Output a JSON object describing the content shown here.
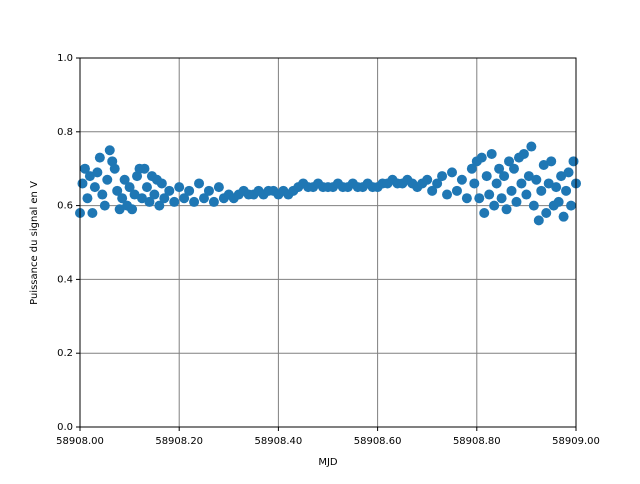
{
  "chart_data": {
    "type": "scatter",
    "x_label": "MJD",
    "y_label": "Puissance du signal en V",
    "x": [
      58908.0,
      58908.005,
      58908.01,
      58908.015,
      58908.02,
      58908.025,
      58908.03,
      58908.035,
      58908.04,
      58908.045,
      58908.05,
      58908.055,
      58908.06,
      58908.065,
      58908.07,
      58908.075,
      58908.08,
      58908.085,
      58908.09,
      58908.095,
      58908.1,
      58908.105,
      58908.11,
      58908.115,
      58908.12,
      58908.125,
      58908.13,
      58908.135,
      58908.14,
      58908.145,
      58908.15,
      58908.155,
      58908.16,
      58908.165,
      58908.17,
      58908.18,
      58908.19,
      58908.2,
      58908.21,
      58908.22,
      58908.23,
      58908.24,
      58908.25,
      58908.26,
      58908.27,
      58908.28,
      58908.29,
      58908.3,
      58908.31,
      58908.32,
      58908.33,
      58908.34,
      58908.35,
      58908.36,
      58908.37,
      58908.38,
      58908.39,
      58908.4,
      58908.41,
      58908.42,
      58908.43,
      58908.44,
      58908.45,
      58908.46,
      58908.47,
      58908.48,
      58908.49,
      58908.5,
      58908.51,
      58908.52,
      58908.53,
      58908.54,
      58908.55,
      58908.56,
      58908.57,
      58908.58,
      58908.59,
      58908.6,
      58908.61,
      58908.62,
      58908.63,
      58908.64,
      58908.65,
      58908.66,
      58908.67,
      58908.68,
      58908.69,
      58908.7,
      58908.71,
      58908.72,
      58908.73,
      58908.74,
      58908.75,
      58908.76,
      58908.77,
      58908.78,
      58908.79,
      58908.795,
      58908.8,
      58908.805,
      58908.81,
      58908.815,
      58908.82,
      58908.825,
      58908.83,
      58908.835,
      58908.84,
      58908.845,
      58908.85,
      58908.855,
      58908.86,
      58908.865,
      58908.87,
      58908.875,
      58908.88,
      58908.885,
      58908.89,
      58908.895,
      58908.9,
      58908.905,
      58908.91,
      58908.915,
      58908.92,
      58908.925,
      58908.93,
      58908.935,
      58908.94,
      58908.945,
      58908.95,
      58908.955,
      58908.96,
      58908.965,
      58908.97,
      58908.975,
      58908.98,
      58908.985,
      58908.99,
      58908.995,
      58909.0
    ],
    "series": [
      {
        "color": "#1f77b4",
        "values": [
          0.58,
          0.66,
          0.7,
          0.62,
          0.68,
          0.58,
          0.65,
          0.69,
          0.73,
          0.63,
          0.6,
          0.67,
          0.75,
          0.72,
          0.7,
          0.64,
          0.59,
          0.62,
          0.67,
          0.6,
          0.65,
          0.59,
          0.63,
          0.68,
          0.7,
          0.62,
          0.7,
          0.65,
          0.61,
          0.68,
          0.63,
          0.67,
          0.6,
          0.66,
          0.62,
          0.64,
          0.61,
          0.65,
          0.62,
          0.64,
          0.61,
          0.66,
          0.62,
          0.64,
          0.61,
          0.65,
          0.62,
          0.63,
          0.62,
          0.63,
          0.64,
          0.63,
          0.63,
          0.64,
          0.63,
          0.64,
          0.64,
          0.63,
          0.64,
          0.63,
          0.64,
          0.65,
          0.66,
          0.65,
          0.65,
          0.66,
          0.65,
          0.65,
          0.65,
          0.66,
          0.65,
          0.65,
          0.66,
          0.65,
          0.65,
          0.66,
          0.65,
          0.65,
          0.66,
          0.66,
          0.67,
          0.66,
          0.66,
          0.67,
          0.66,
          0.65,
          0.66,
          0.67,
          0.64,
          0.66,
          0.68,
          0.63,
          0.69,
          0.64,
          0.67,
          0.62,
          0.7,
          0.66,
          0.72,
          0.62,
          0.73,
          0.58,
          0.68,
          0.63,
          0.74,
          0.6,
          0.66,
          0.7,
          0.62,
          0.68,
          0.59,
          0.72,
          0.64,
          0.7,
          0.61,
          0.73,
          0.66,
          0.74,
          0.63,
          0.68,
          0.76,
          0.6,
          0.67,
          0.56,
          0.64,
          0.71,
          0.58,
          0.66,
          0.72,
          0.6,
          0.65,
          0.61,
          0.68,
          0.57,
          0.64,
          0.69,
          0.6,
          0.72,
          0.66
        ]
      }
    ],
    "xlim": [
      58908,
      58909
    ],
    "xticks": [
      {
        "value": 58908,
        "label": "58908.00"
      },
      {
        "value": 58908.2,
        "label": "58908.20"
      },
      {
        "value": 58908.4,
        "label": "58908.40"
      },
      {
        "value": 58908.6,
        "label": "58908.60"
      },
      {
        "value": 58908.8,
        "label": "58908.80"
      },
      {
        "value": 58909,
        "label": "58909.00"
      }
    ],
    "ylim": [
      0,
      1
    ],
    "yticks": [
      {
        "value": 0,
        "label": "0.0"
      },
      0.2,
      0.4,
      0.6,
      0.8,
      {
        "value": 1,
        "label": "1.0"
      }
    ],
    "grid": true,
    "grid_color": "#808080"
  }
}
